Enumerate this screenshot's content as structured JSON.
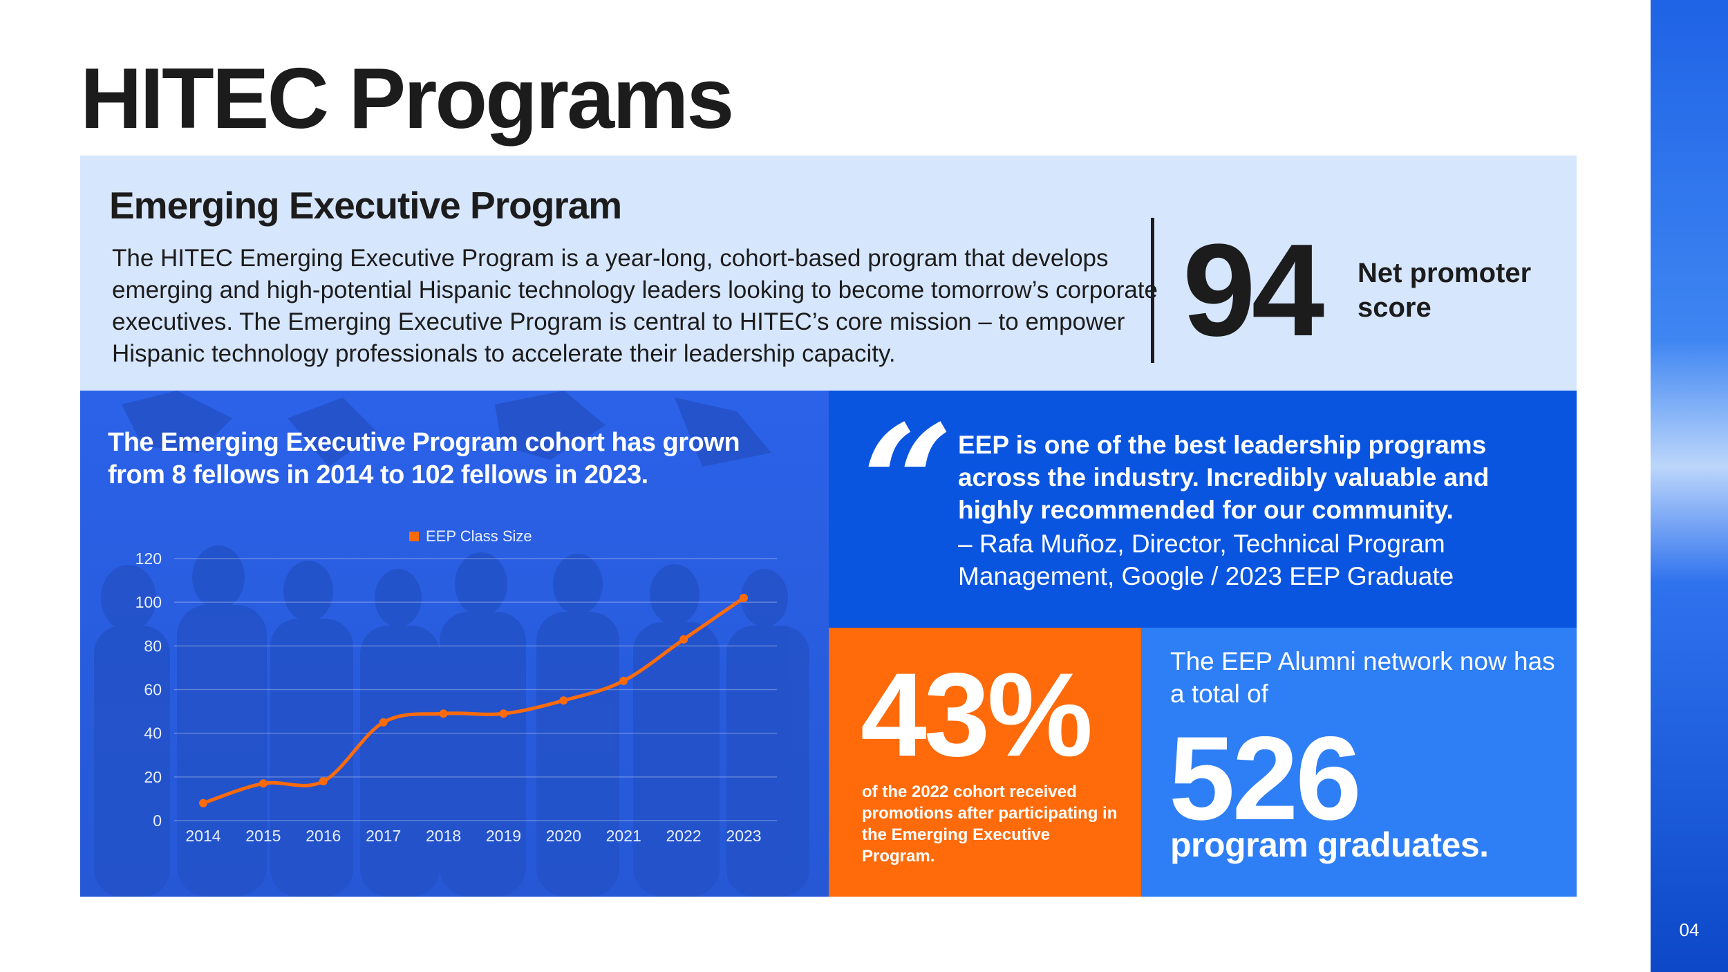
{
  "slide": {
    "title": "HITEC Programs",
    "page_number": "04"
  },
  "program": {
    "title": "Emerging Executive Program",
    "description": "The HITEC Emerging Executive Program is a year-long, cohort-based program that develops emerging and high-potential Hispanic technology leaders looking to become tomorrow’s corporate executives. The Emerging Executive Program is central to HITEC’s core mission – to empower Hispanic technology professionals to accelerate their leadership capacity."
  },
  "nps": {
    "value": "94",
    "label": "Net promoter score"
  },
  "growth": {
    "headline": "The Emerging Executive Program cohort has grown from 8 fellows in 2014 to 102 fellows in 2023."
  },
  "quote": {
    "mark": "“",
    "text": "EEP is one of the best leadership programs across the industry. Incredibly valuable and highly recommended for our community.",
    "author": "– Rafa Muñoz, Director, Technical Program Management, Google / 2023 EEP Graduate"
  },
  "promotions": {
    "value": "43%",
    "caption": "of the 2022 cohort received promotions after participating in the Emerging Executive Program."
  },
  "alumni": {
    "intro": "The EEP Alumni network now has a total of",
    "value": "526",
    "label": "program graduates."
  },
  "colors": {
    "chart_panel": "#2c63ea",
    "quote_panel": "#0a55e0",
    "orange": "#ff6b0a",
    "alumni_panel": "#2e7ef6",
    "top_panel": "#d6e6fd"
  },
  "chart_data": {
    "type": "line",
    "x": [
      "2014",
      "2015",
      "2016",
      "2017",
      "2018",
      "2019",
      "2020",
      "2021",
      "2022",
      "2023"
    ],
    "series": [
      {
        "name": "EEP Class Size",
        "values": [
          8,
          17,
          18,
          45,
          49,
          49,
          55,
          64,
          83,
          102
        ],
        "color": "#ff6b0a"
      }
    ],
    "title": "",
    "xlabel": "",
    "ylabel": "",
    "ylim": [
      0,
      120
    ],
    "yticks": [
      0,
      20,
      40,
      60,
      80,
      100,
      120
    ],
    "grid": true,
    "legend": "top-center",
    "smooth": true
  }
}
